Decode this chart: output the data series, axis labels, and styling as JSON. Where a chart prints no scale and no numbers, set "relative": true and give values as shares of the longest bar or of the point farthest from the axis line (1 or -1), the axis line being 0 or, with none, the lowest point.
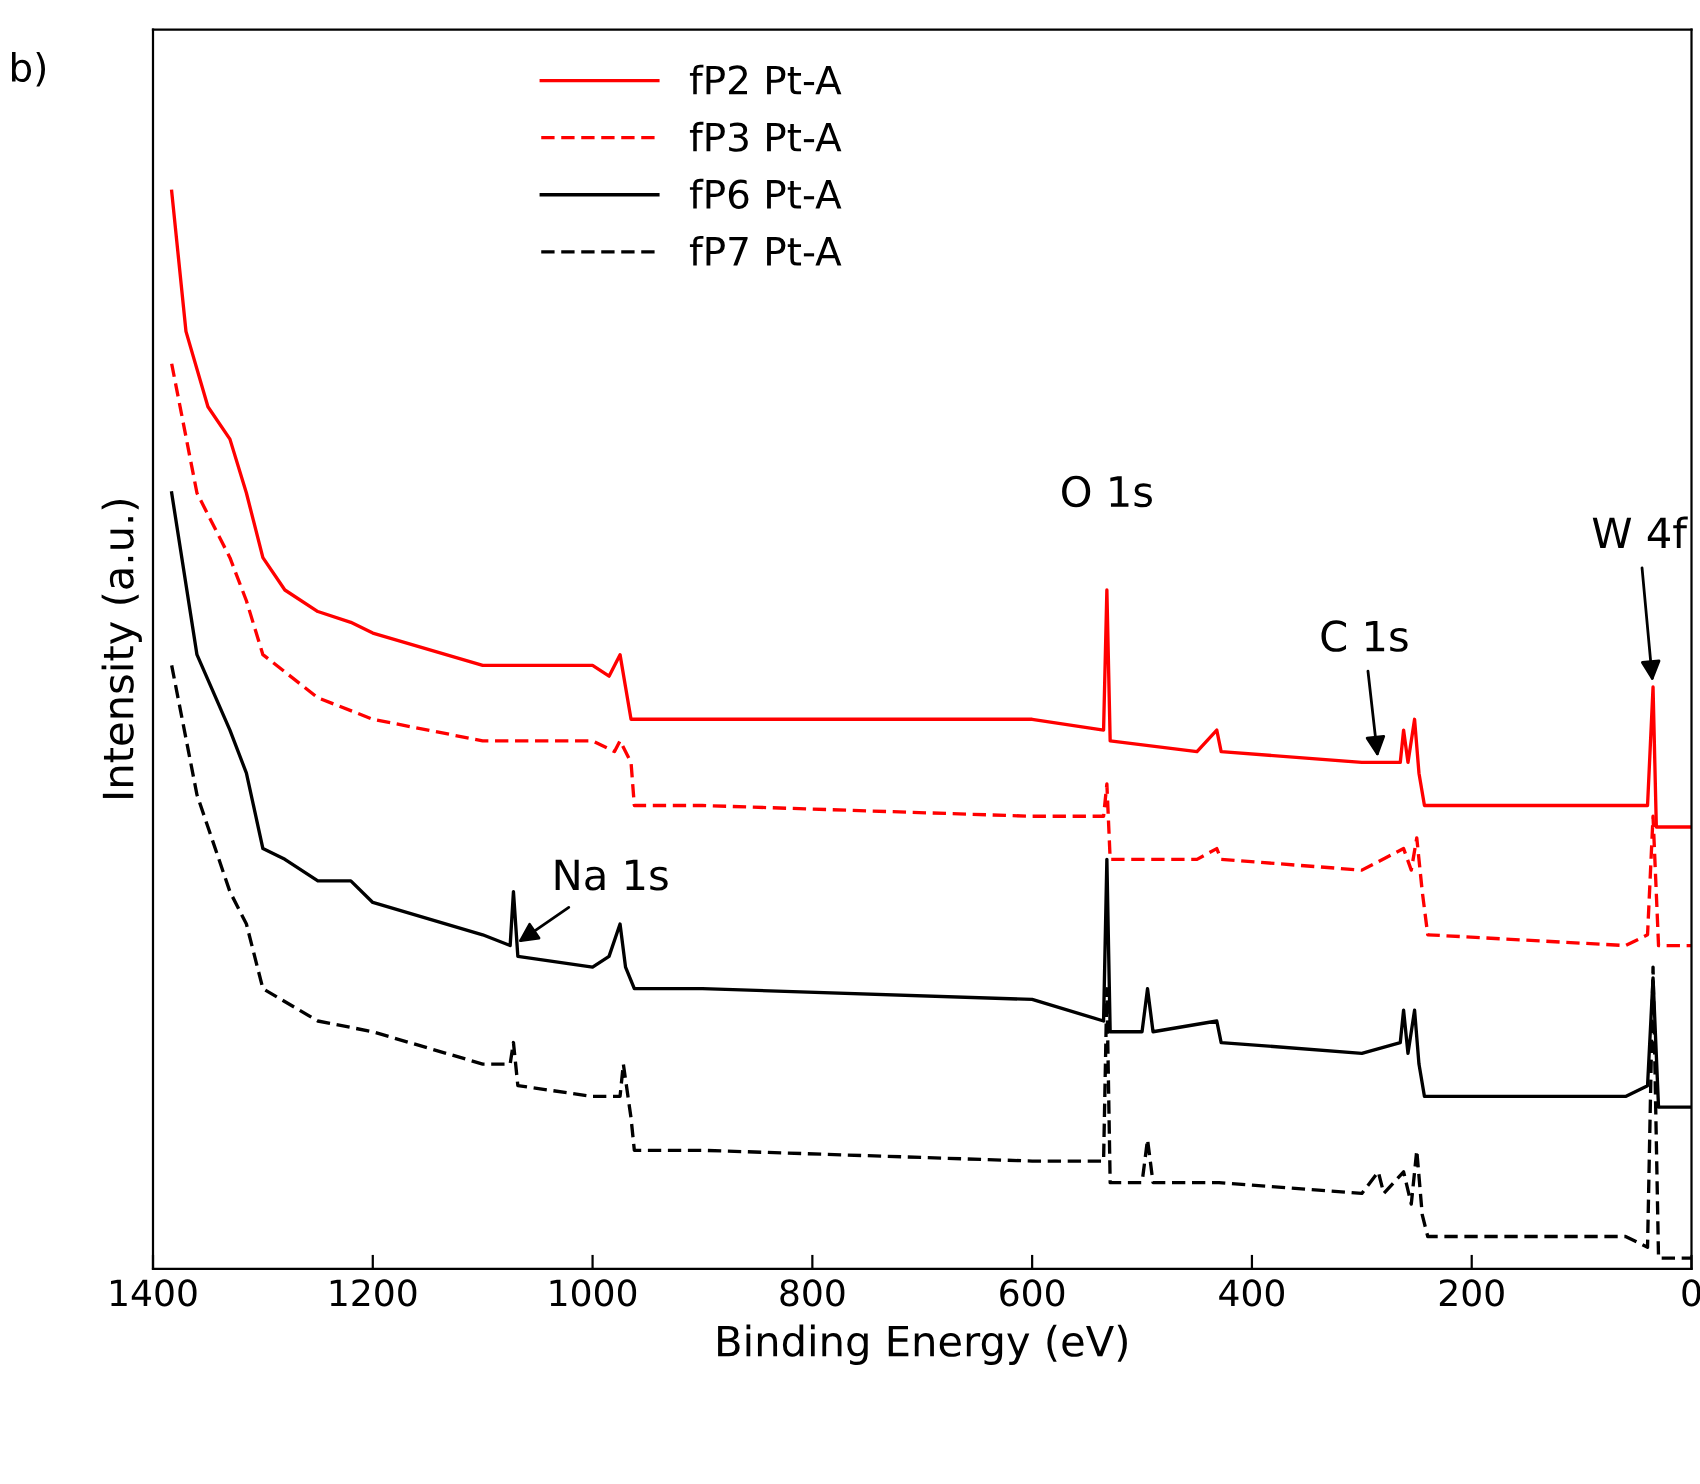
{
  "chart_data": {
    "type": "line",
    "relative": true,
    "xlabel": "Binding Energy (eV)",
    "ylabel": "Intensity (a.u.)",
    "xlim": [
      1400,
      0
    ],
    "xticks": [
      1400,
      1200,
      1000,
      800,
      600,
      400,
      200,
      0
    ],
    "legend": "top",
    "grid": false,
    "annotations": [
      "b)",
      {
        "text": "O 1s",
        "x": 532,
        "y": 0.63
      },
      {
        "text": "C 1s",
        "x": 285,
        "y": 0.47
      },
      {
        "text": "W 4f",
        "x": 35,
        "y": 0.54
      },
      {
        "text": "Na 1s",
        "x": 1072,
        "y": 0.3
      }
    ],
    "series": [
      {
        "name": "fP2 Pt-A",
        "color": "#ff0000",
        "line_style": "solid",
        "x": [
          1383,
          1370,
          1350,
          1330,
          1315,
          1300,
          1280,
          1250,
          1220,
          1200,
          1100,
          1000,
          985,
          975,
          970,
          965,
          900,
          700,
          600,
          535,
          532,
          529,
          450,
          432,
          428,
          300,
          265,
          262,
          258,
          252,
          248,
          243,
          200,
          60,
          40,
          35,
          32,
          10,
          0
        ],
        "values": [
          1.0,
          0.87,
          0.8,
          0.77,
          0.72,
          0.66,
          0.63,
          0.61,
          0.6,
          0.59,
          0.56,
          0.56,
          0.55,
          0.57,
          0.54,
          0.51,
          0.51,
          0.51,
          0.51,
          0.5,
          0.63,
          0.49,
          0.48,
          0.5,
          0.48,
          0.47,
          0.47,
          0.5,
          0.47,
          0.51,
          0.46,
          0.43,
          0.43,
          0.43,
          0.43,
          0.54,
          0.41,
          0.41,
          0.41
        ]
      },
      {
        "name": "fP3 Pt-A",
        "color": "#ff0000",
        "line_style": "dashed",
        "x": [
          1383,
          1360,
          1330,
          1315,
          1300,
          1250,
          1200,
          1100,
          1000,
          980,
          975,
          965,
          962,
          900,
          600,
          535,
          532,
          529,
          450,
          432,
          428,
          300,
          262,
          255,
          250,
          245,
          240,
          60,
          40,
          35,
          30,
          0
        ],
        "values": [
          0.84,
          0.72,
          0.66,
          0.62,
          0.57,
          0.53,
          0.51,
          0.49,
          0.49,
          0.48,
          0.49,
          0.47,
          0.43,
          0.43,
          0.42,
          0.42,
          0.45,
          0.38,
          0.38,
          0.39,
          0.38,
          0.37,
          0.39,
          0.37,
          0.4,
          0.35,
          0.31,
          0.3,
          0.31,
          0.42,
          0.3,
          0.3
        ]
      },
      {
        "name": "fP6 Pt-A",
        "color": "#000000",
        "line_style": "solid",
        "x": [
          1383,
          1360,
          1330,
          1315,
          1300,
          1280,
          1250,
          1220,
          1200,
          1100,
          1075,
          1072,
          1068,
          1000,
          985,
          975,
          970,
          962,
          900,
          600,
          535,
          532,
          529,
          500,
          495,
          490,
          432,
          428,
          300,
          265,
          262,
          258,
          252,
          248,
          243,
          60,
          40,
          35,
          30,
          0
        ],
        "values": [
          0.72,
          0.57,
          0.5,
          0.46,
          0.39,
          0.38,
          0.36,
          0.36,
          0.34,
          0.31,
          0.3,
          0.35,
          0.29,
          0.28,
          0.29,
          0.32,
          0.28,
          0.26,
          0.26,
          0.25,
          0.23,
          0.38,
          0.22,
          0.22,
          0.26,
          0.22,
          0.23,
          0.21,
          0.2,
          0.21,
          0.24,
          0.2,
          0.24,
          0.19,
          0.16,
          0.16,
          0.17,
          0.27,
          0.15,
          0.15
        ]
      },
      {
        "name": "fP7 Pt-A",
        "color": "#000000",
        "line_style": "dashed",
        "x": [
          1383,
          1360,
          1330,
          1315,
          1300,
          1250,
          1200,
          1100,
          1075,
          1072,
          1068,
          1000,
          975,
          972,
          965,
          962,
          900,
          600,
          535,
          532,
          529,
          500,
          495,
          490,
          430,
          300,
          285,
          280,
          262,
          255,
          250,
          245,
          240,
          60,
          40,
          35,
          30,
          0
        ],
        "values": [
          0.56,
          0.44,
          0.35,
          0.32,
          0.26,
          0.23,
          0.22,
          0.19,
          0.19,
          0.21,
          0.17,
          0.16,
          0.16,
          0.19,
          0.14,
          0.11,
          0.11,
          0.1,
          0.1,
          0.26,
          0.08,
          0.08,
          0.12,
          0.08,
          0.08,
          0.07,
          0.09,
          0.07,
          0.09,
          0.06,
          0.11,
          0.05,
          0.03,
          0.03,
          0.02,
          0.28,
          0.01,
          0.01
        ]
      }
    ]
  }
}
